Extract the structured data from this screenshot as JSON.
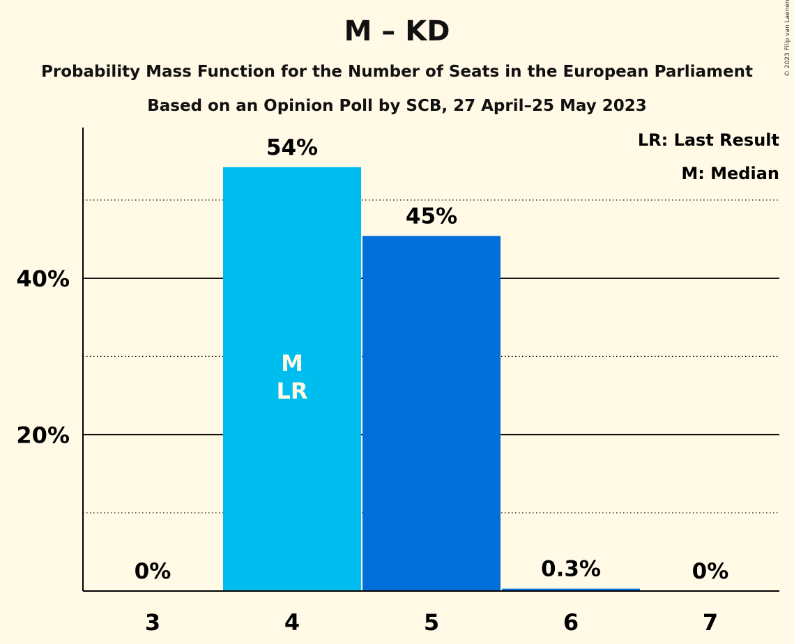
{
  "title": "M – KD",
  "subtitle": "Probability Mass Function for the Number of Seats in the European Parliament",
  "subtitle2": "Based on an Opinion Poll by SCB, 27 April–25 May 2023",
  "copyright": "© 2023 Filip van Laenen",
  "legend": {
    "lr": "LR: Last Result",
    "m": "M: Median"
  },
  "chart_data": {
    "type": "bar",
    "categories": [
      "3",
      "4",
      "5",
      "6",
      "7"
    ],
    "values": [
      0,
      54.2,
      45.4,
      0.3,
      0
    ],
    "value_labels": [
      "0%",
      "54%",
      "45%",
      "0.3%",
      "0%"
    ],
    "bar_colors": [
      "#00BDEF",
      "#00BDEF",
      "#006FD9",
      "#006FD9",
      "#006FD9"
    ],
    "in_bar_labels": {
      "4": [
        "M",
        "LR"
      ]
    },
    "yticks": [
      {
        "value": 20,
        "label": "20%"
      },
      {
        "value": 40,
        "label": "40%"
      }
    ],
    "minor_gridlines": [
      10,
      30,
      50
    ],
    "ylim": [
      0,
      59
    ],
    "grid": true,
    "legend_position": "top-right"
  }
}
